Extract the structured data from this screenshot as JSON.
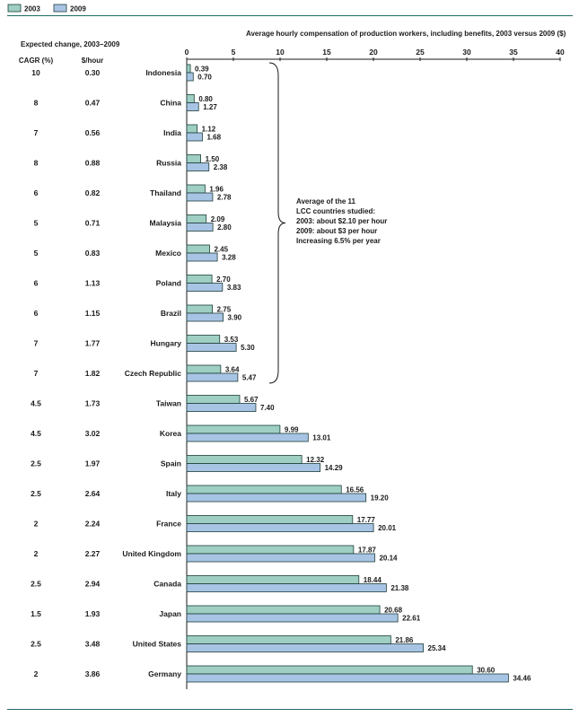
{
  "chart_data": {
    "type": "bar",
    "title": "Average hourly compensation of production workers, including benefits, 2003 versus 2009 ($)",
    "xlim": [
      0,
      40
    ],
    "ticks": [
      0,
      5,
      10,
      15,
      20,
      25,
      30,
      35,
      40
    ],
    "legend_position": "top-left",
    "categories": [
      "Indonesia",
      "China",
      "India",
      "Russia",
      "Thailand",
      "Malaysia",
      "Mexico",
      "Poland",
      "Brazil",
      "Hungary",
      "Czech Republic",
      "Taiwan",
      "Korea",
      "Spain",
      "Italy",
      "France",
      "United Kingdom",
      "Canada",
      "Japan",
      "United States",
      "Germany"
    ],
    "series": [
      {
        "name": "2003",
        "color": "#9ecfc2",
        "values": [
          0.39,
          0.8,
          1.12,
          1.5,
          1.96,
          2.09,
          2.45,
          2.7,
          2.75,
          3.53,
          3.64,
          5.67,
          9.99,
          12.32,
          16.56,
          17.77,
          17.87,
          18.44,
          20.68,
          21.86,
          30.6
        ],
        "labels": [
          "0.39",
          "0.80",
          "1.12",
          "1.50",
          "1.96",
          "2.09",
          "2.45",
          "2.70",
          "2.75",
          "3.53",
          "3.64",
          "5.67",
          "9.99",
          "12.32",
          "16.56",
          "17.77",
          "17.87",
          "18.44",
          "20.68",
          "21.86",
          "30.60"
        ]
      },
      {
        "name": "2009",
        "color": "#a8c4e4",
        "values": [
          0.7,
          1.27,
          1.68,
          2.38,
          2.78,
          2.8,
          3.28,
          3.83,
          3.9,
          5.3,
          5.47,
          7.4,
          13.01,
          14.29,
          19.2,
          20.01,
          20.14,
          21.38,
          22.61,
          25.34,
          34.46
        ],
        "labels": [
          "0.70",
          "1.27",
          "1.68",
          "2.38",
          "2.78",
          "2.80",
          "3.28",
          "3.83",
          "3.90",
          "5.30",
          "5.47",
          "7.40",
          "13.01",
          "14.29",
          "19.20",
          "20.01",
          "20.14",
          "21.38",
          "22.61",
          "25.34",
          "34.46"
        ]
      }
    ],
    "expected_change": {
      "heading": "Expected change, 2003–2009",
      "cagr_header": "CAGR (%)",
      "dollar_header": "$/hour",
      "cagr": [
        "10",
        "8",
        "7",
        "8",
        "6",
        "5",
        "5",
        "6",
        "6",
        "7",
        "7",
        "4.5",
        "4.5",
        "2.5",
        "2.5",
        "2",
        "2",
        "2.5",
        "1.5",
        "2.5",
        "2"
      ],
      "dollars": [
        "0.30",
        "0.47",
        "0.56",
        "0.88",
        "0.82",
        "0.71",
        "0.83",
        "1.13",
        "1.15",
        "1.77",
        "1.82",
        "1.73",
        "3.02",
        "1.97",
        "2.64",
        "2.24",
        "2.27",
        "2.94",
        "1.93",
        "3.48",
        "3.86"
      ]
    },
    "annotation": {
      "lines": [
        "Average of the 11",
        "LCC countries studied:",
        "2003: about $2.10 per hour",
        "2009: about $3 per hour",
        "Increasing 6.5% per year"
      ],
      "bracket_first_category": "Indonesia",
      "bracket_last_category": "Czech Republic"
    }
  }
}
